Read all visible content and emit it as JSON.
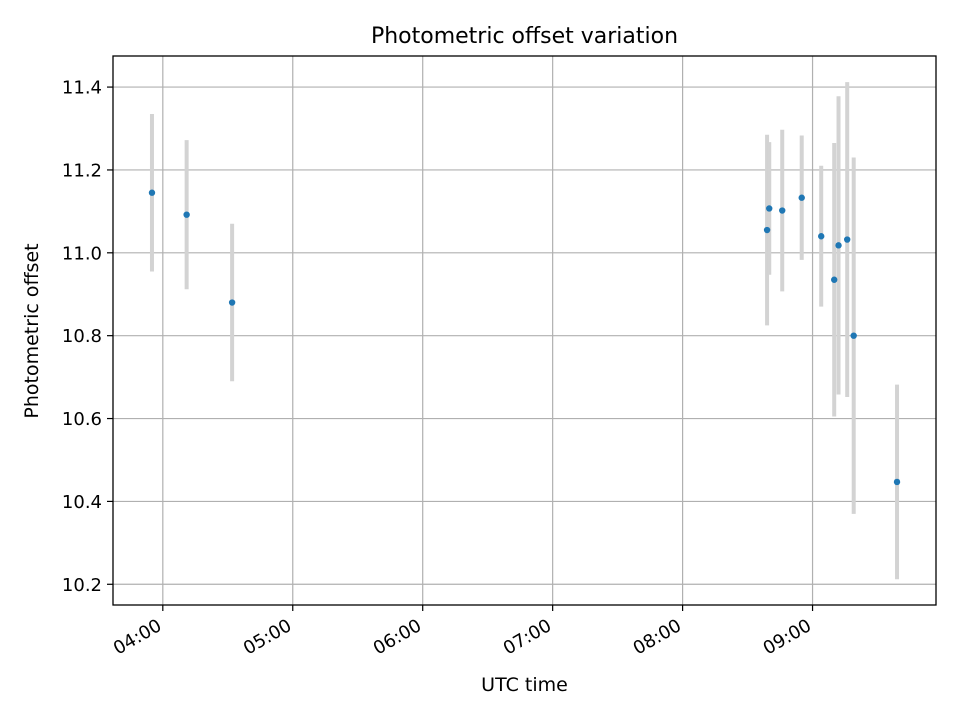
{
  "chart_data": {
    "type": "scatter",
    "title": "Photometric offset variation",
    "xlabel": "UTC time",
    "ylabel": "Photometric offset",
    "x_ticks": [
      "04:00",
      "05:00",
      "06:00",
      "07:00",
      "08:00",
      "09:00"
    ],
    "y_ticks": [
      "10.2",
      "10.4",
      "10.6",
      "10.8",
      "11.0",
      "11.2",
      "11.4"
    ],
    "xlim": [
      "03:37",
      "09:57"
    ],
    "ylim": [
      10.15,
      11.475
    ],
    "grid": true,
    "points": [
      {
        "x": "03:55",
        "y": 11.145,
        "err": 0.19
      },
      {
        "x": "04:11",
        "y": 11.092,
        "err": 0.18
      },
      {
        "x": "04:32",
        "y": 10.88,
        "err": 0.19
      },
      {
        "x": "08:39",
        "y": 11.055,
        "err": 0.23
      },
      {
        "x": "08:40",
        "y": 11.107,
        "err": 0.16
      },
      {
        "x": "08:46",
        "y": 11.102,
        "err": 0.195
      },
      {
        "x": "08:55",
        "y": 11.133,
        "err": 0.15
      },
      {
        "x": "09:04",
        "y": 11.04,
        "err": 0.17
      },
      {
        "x": "09:10",
        "y": 10.935,
        "err": 0.33
      },
      {
        "x": "09:12",
        "y": 11.018,
        "err": 0.36
      },
      {
        "x": "09:16",
        "y": 11.032,
        "err": 0.38
      },
      {
        "x": "09:19",
        "y": 10.8,
        "err": 0.43
      },
      {
        "x": "09:39",
        "y": 10.447,
        "err": 0.235
      }
    ],
    "colors": {
      "point": "#1f77b4",
      "errorbar": "#d3d3d3",
      "grid": "#b0b0b0",
      "axes": "#000000"
    }
  }
}
